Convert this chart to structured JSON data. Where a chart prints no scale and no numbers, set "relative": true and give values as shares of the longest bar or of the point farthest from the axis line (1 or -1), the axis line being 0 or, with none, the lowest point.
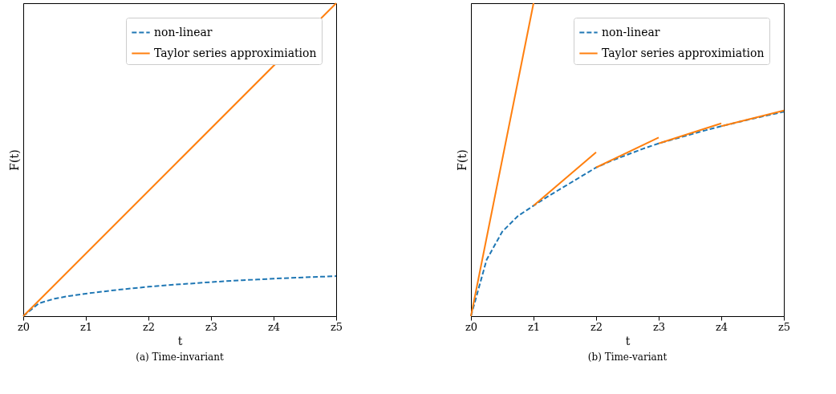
{
  "chart_data": [
    {
      "type": "line",
      "title": "(a) Time-invariant",
      "xlabel": "t",
      "ylabel": "F(t)",
      "relative": true,
      "legend": "top right",
      "grid": false,
      "categories": [
        "z0",
        null,
        null,
        null,
        "z1",
        null,
        null,
        null,
        "z2",
        null,
        null,
        null,
        "z3",
        null,
        null,
        null,
        "z4",
        null,
        null,
        null,
        "z5"
      ],
      "series": [
        {
          "name": "non-linear",
          "color": "#1f77b4",
          "line_style": "dashed",
          "values": [
            0,
            0.041,
            0.056,
            0.065,
            0.072,
            0.078,
            0.084,
            0.089,
            0.094,
            0.098,
            0.102,
            0.105,
            0.109,
            0.112,
            0.115,
            0.117,
            0.12,
            0.122,
            0.124,
            0.126,
            0.128
          ]
        },
        {
          "name": "Taylor series approximiation",
          "color": "#ff7f0e",
          "line_style": "solid",
          "values": [
            0,
            null,
            null,
            null,
            null,
            null,
            null,
            null,
            null,
            null,
            null,
            null,
            null,
            null,
            null,
            null,
            null,
            null,
            null,
            null,
            1
          ]
        }
      ]
    },
    {
      "type": "line",
      "title": "(b) Time-variant",
      "xlabel": "t",
      "ylabel": "F(t)",
      "relative": true,
      "legend": "top right",
      "grid": false,
      "categories": [
        "z0",
        null,
        null,
        null,
        "z1",
        null,
        null,
        null,
        "z2",
        null,
        null,
        null,
        "z3",
        null,
        null,
        null,
        "z4",
        null,
        null,
        null,
        "z5"
      ],
      "series": [
        {
          "name": "non-linear",
          "color": "#1f77b4",
          "line_style": "dashed",
          "values": [
            0,
            0.18,
            0.27,
            0.32,
            0.353,
            0.385,
            0.415,
            0.445,
            0.475,
            0.497,
            0.516,
            0.535,
            0.552,
            0.566,
            0.58,
            0.594,
            0.607,
            null,
            0.631,
            0.642,
            0.653
          ]
        },
        {
          "name": "Taylor series approximiation",
          "color": "#ff7f0e",
          "line_style": "solid",
          "values": [
            0,
            null,
            null,
            null,
            1,
            null,
            null,
            null,
            null,
            null,
            null,
            null,
            null,
            null,
            null,
            null,
            null,
            null,
            null,
            null,
            null
          ]
        },
        {
          "color": "#ff7f0e",
          "line_style": "solid",
          "values": [
            null,
            null,
            null,
            null,
            0.353,
            null,
            null,
            null,
            0.524,
            null,
            null,
            null,
            null,
            null,
            null,
            null,
            null,
            null,
            null,
            null,
            null
          ]
        },
        {
          "color": "#ff7f0e",
          "line_style": "solid",
          "values": [
            null,
            null,
            null,
            null,
            null,
            null,
            null,
            null,
            0.475,
            null,
            null,
            null,
            0.571,
            null,
            null,
            null,
            null,
            null,
            null,
            null,
            null
          ]
        },
        {
          "color": "#ff7f0e",
          "line_style": "solid",
          "values": [
            null,
            null,
            null,
            null,
            null,
            null,
            null,
            null,
            null,
            null,
            null,
            null,
            0.552,
            null,
            null,
            null,
            0.616,
            null,
            null,
            null,
            null
          ]
        },
        {
          "color": "#ff7f0e",
          "line_style": "solid",
          "values": [
            null,
            null,
            null,
            null,
            null,
            null,
            null,
            null,
            null,
            null,
            null,
            null,
            null,
            null,
            null,
            null,
            0.607,
            null,
            null,
            null,
            0.657
          ]
        }
      ]
    }
  ]
}
